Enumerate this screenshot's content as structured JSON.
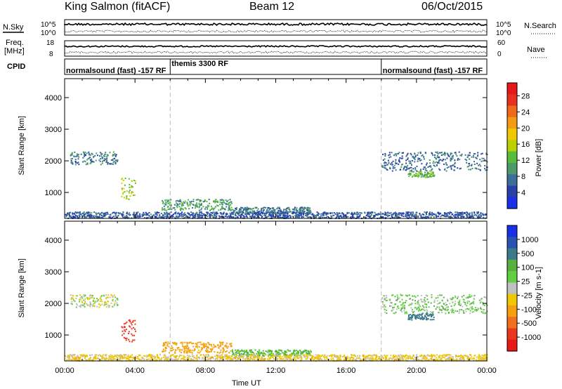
{
  "header": {
    "station": "King Salmon (fitACF)",
    "beam": "Beam 12",
    "date": "06/Oct/2015"
  },
  "top_panels": {
    "nsky_label": "N.Sky",
    "nsearch_label": "N.Search",
    "freq_label_line1": "Freq.",
    "freq_label_line2": "[MHz]",
    "nave_label": "Nave",
    "cpid_label": "CPID",
    "noise_ticks_left": [
      "10^5",
      "10^0"
    ],
    "noise_ticks_right": [
      "10^5",
      "10^0"
    ],
    "freq_ticks_left": [
      "18",
      "8"
    ],
    "nave_ticks_right": [
      "60",
      "0"
    ],
    "cpid_segments": [
      {
        "start_hour": 0,
        "end_hour": 6,
        "label": "normalsound (fast) -157 RF"
      },
      {
        "start_hour": 6,
        "end_hour": 18,
        "label": "themis 3300 RF"
      },
      {
        "start_hour": 18,
        "end_hour": 24,
        "label": "normalsound (fast) -157 RF"
      }
    ]
  },
  "chart_data": [
    {
      "type": "heatmap",
      "name": "power",
      "xlabel": "Time UT",
      "ylabel": "Slant Range [km]",
      "xlim": [
        0,
        24
      ],
      "ylim": [
        180,
        4600
      ],
      "x_ticks": [
        "00:00",
        "04:00",
        "08:00",
        "12:00",
        "16:00",
        "20:00",
        "00:00"
      ],
      "y_ticks": [
        1000,
        2000,
        3000,
        4000
      ],
      "colorbar_label": "Power [dB]",
      "colorbar_ticks": [
        "4",
        "8",
        "12",
        "16",
        "20",
        "24",
        "28"
      ],
      "colorbar_colors": [
        "#1a2fe8",
        "#2840a8",
        "#3c6e9a",
        "#4c9a68",
        "#58bc3c",
        "#bcd000",
        "#f0c800",
        "#f59a14",
        "#f06a1c",
        "#e83020",
        "#e81818"
      ],
      "scatter_regions": [
        {
          "t0": 0.3,
          "t1": 3.0,
          "r0": 1900,
          "r1": 2300,
          "value": 8
        },
        {
          "t0": 3.2,
          "t1": 4.0,
          "r0": 800,
          "r1": 1500,
          "value": 14
        },
        {
          "t0": 5.5,
          "t1": 9.5,
          "r0": 450,
          "r1": 800,
          "value": 10
        },
        {
          "t0": 9.5,
          "t1": 14.0,
          "r0": 350,
          "r1": 550,
          "value": 8
        },
        {
          "t0": 18.0,
          "t1": 24.0,
          "r0": 1700,
          "r1": 2300,
          "value": 7
        },
        {
          "t0": 19.5,
          "t1": 21.0,
          "r0": 1500,
          "r1": 1700,
          "value": 12
        },
        {
          "t0": 0.0,
          "t1": 24.0,
          "r0": 200,
          "r1": 400,
          "value": 6
        }
      ]
    },
    {
      "type": "heatmap",
      "name": "velocity",
      "xlabel": "Time UT",
      "ylabel": "Slant Range [km]",
      "xlim": [
        0,
        24
      ],
      "ylim": [
        180,
        4600
      ],
      "x_ticks": [
        "00:00",
        "04:00",
        "08:00",
        "12:00",
        "16:00",
        "20:00",
        "00:00"
      ],
      "y_ticks": [
        1000,
        2000,
        3000,
        4000
      ],
      "colorbar_label": "Velocity [m s-1]",
      "colorbar_ticks": [
        "1000",
        "500",
        "100",
        "25",
        "-25",
        "-100",
        "-500",
        "-1000"
      ],
      "colorbar_colors": [
        "#1a2fe8",
        "#2a52b0",
        "#3a7a8a",
        "#58b040",
        "#60d040",
        "#c0c0c0",
        "#f0c800",
        "#f5a010",
        "#f07020",
        "#e83820",
        "#e81818"
      ],
      "scatter_regions": [
        {
          "t0": 0.3,
          "t1": 3.0,
          "r0": 1900,
          "r1": 2300,
          "value": -25
        },
        {
          "t0": 3.2,
          "t1": 4.0,
          "r0": 800,
          "r1": 1500,
          "value": -500
        },
        {
          "t0": 5.5,
          "t1": 9.5,
          "r0": 450,
          "r1": 800,
          "value": -100
        },
        {
          "t0": 9.5,
          "t1": 14.0,
          "r0": 350,
          "r1": 550,
          "value": 25
        },
        {
          "t0": 18.0,
          "t1": 24.0,
          "r0": 1700,
          "r1": 2300,
          "value": 0
        },
        {
          "t0": 19.5,
          "t1": 21.0,
          "r0": 1500,
          "r1": 1700,
          "value": 100
        },
        {
          "t0": 0.0,
          "t1": 24.0,
          "r0": 200,
          "r1": 400,
          "value": -50
        }
      ]
    }
  ]
}
